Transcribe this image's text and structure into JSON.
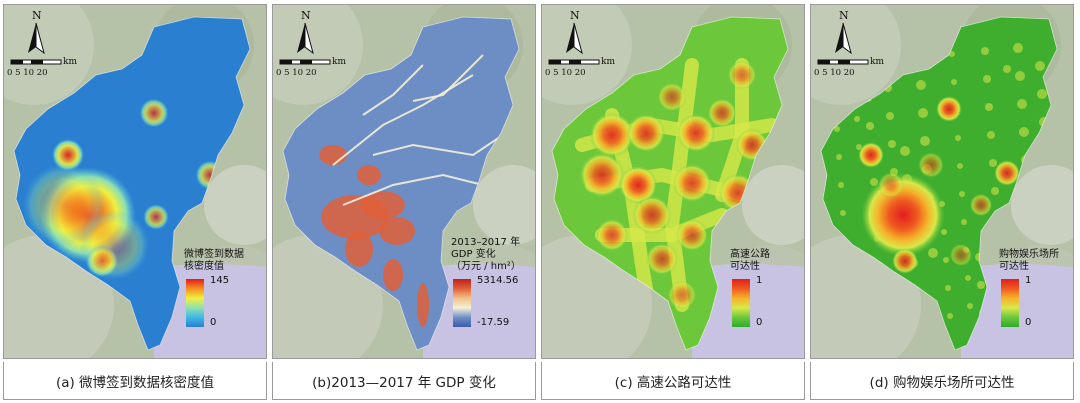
{
  "panels": [
    {
      "id": "a",
      "caption": "(a) 微博签到数据核密度值",
      "legend_title_lines": [
        "微博签到数据",
        "核密度值"
      ],
      "legend_max": "145",
      "legend_min": "0",
      "north_label": "N",
      "scale_unit": "km",
      "scale_ticks": "0  5 10     20",
      "colors": [
        "#2a7fd0",
        "#3fb8e6",
        "#8fe0b0",
        "#f0f040",
        "#f59020",
        "#e41a1c"
      ]
    },
    {
      "id": "b",
      "caption": "(b)2013—2017 年 GDP 变化",
      "legend_title_lines": [
        "2013–2017 年",
        "GDP 变化",
        "（万元 / hm²）"
      ],
      "legend_max": "5314.56",
      "legend_min": "-17.59",
      "north_label": "N",
      "scale_unit": "km",
      "scale_ticks": "0  5 10     20",
      "colors": [
        "#3b5ea8",
        "#6f8fc6",
        "#f4f0d8",
        "#f2c08a",
        "#e0603a",
        "#c0201a"
      ]
    },
    {
      "id": "c",
      "caption": "(c) 高速公路可达性",
      "legend_title_lines": [
        "高速公路",
        "可达性"
      ],
      "legend_max": "1",
      "legend_min": "0",
      "north_label": "N",
      "scale_unit": "km",
      "scale_ticks": "0  5 10     20",
      "colors": [
        "#2eaa2e",
        "#6cc83a",
        "#d8e84a",
        "#f5b22a",
        "#ef5a20",
        "#e01f1f"
      ]
    },
    {
      "id": "d",
      "caption": "(d) 购物娱乐场所可达性",
      "legend_title_lines": [
        "购物娱乐场所",
        "可达性"
      ],
      "legend_max": "1",
      "legend_min": "0",
      "north_label": "N",
      "scale_unit": "km",
      "scale_ticks": "0  5 10     20",
      "colors": [
        "#2eaa2e",
        "#6cc83a",
        "#d8e84a",
        "#f5b22a",
        "#ef5a20",
        "#e01f1f"
      ]
    }
  ]
}
